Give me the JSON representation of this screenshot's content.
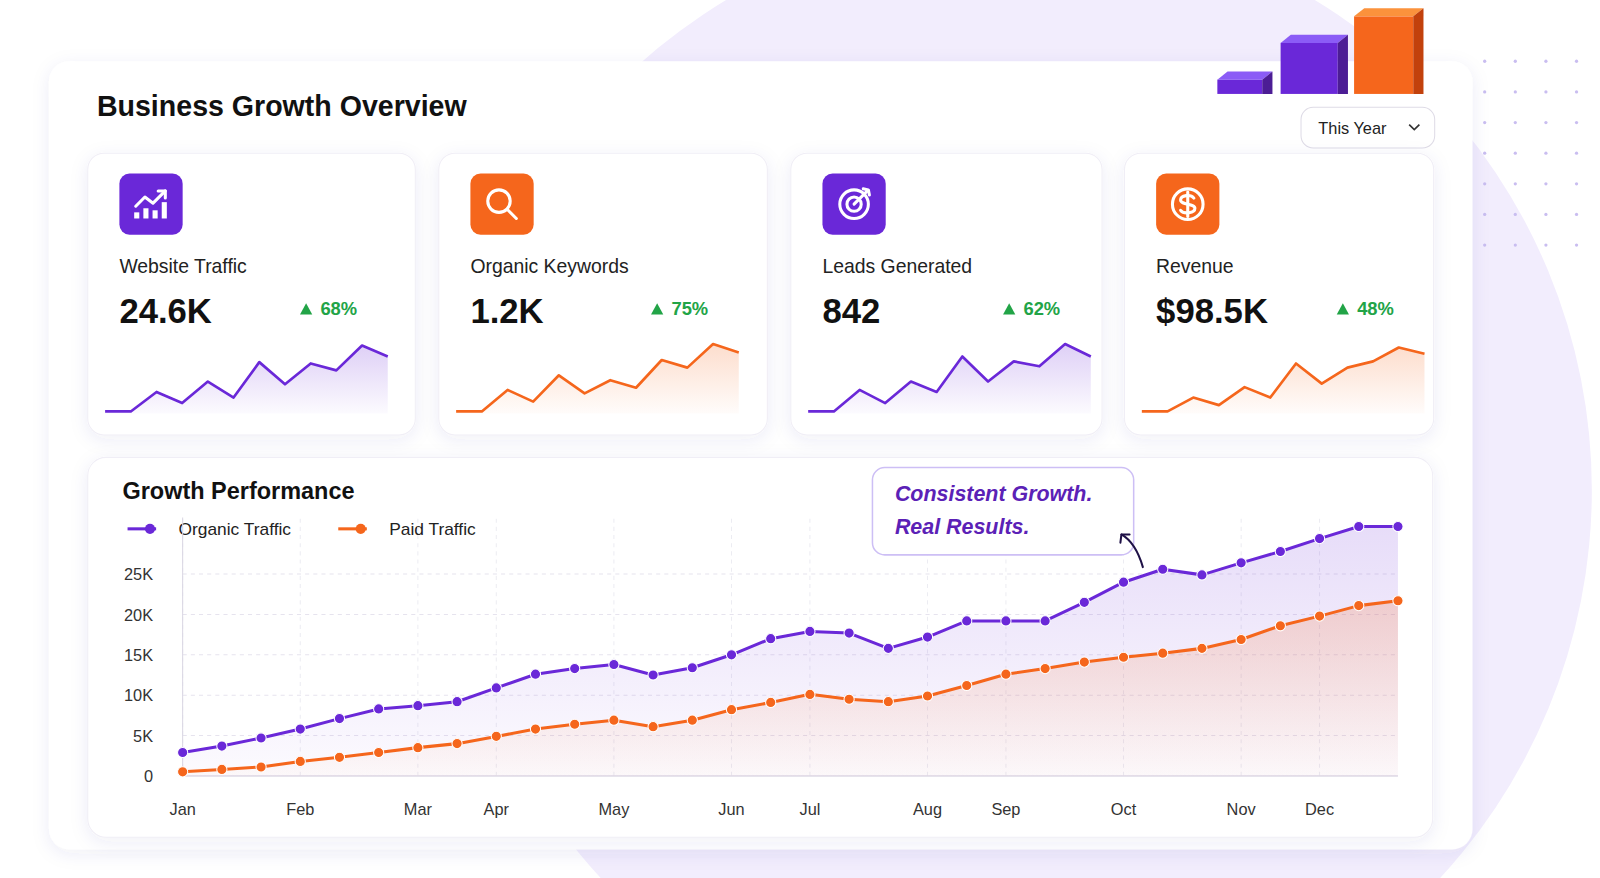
{
  "header": {
    "title": "Business Growth Overview",
    "period": "This Year"
  },
  "cards": [
    {
      "label": "Website Traffic",
      "value": "24.6K",
      "change": "68%"
    },
    {
      "label": "Organic Keywords",
      "value": "1.2K",
      "change": "75%"
    },
    {
      "label": "Leads Generated",
      "value": "842",
      "change": "62%"
    },
    {
      "label": "Revenue",
      "value": "$98.5K",
      "change": "48%"
    }
  ],
  "chart_data": [
    {
      "type": "line",
      "title": "Growth Performance",
      "categories": [
        "Jan",
        null,
        null,
        "Feb",
        null,
        null,
        "Mar",
        null,
        "Apr",
        null,
        null,
        "May",
        null,
        null,
        "Jun",
        null,
        "Jul",
        null,
        null,
        "Aug",
        null,
        "Sep",
        null,
        null,
        "Oct",
        null,
        null,
        "Nov",
        null,
        "Dec",
        null,
        null
      ],
      "series": [
        {
          "name": "Organic Traffic",
          "color": "#6a28d8",
          "marker": "circle",
          "values": [
            2900,
            3700,
            4700,
            5800,
            7100,
            8300,
            8700,
            9200,
            10900,
            12600,
            13300,
            13800,
            12500,
            13400,
            15000,
            17000,
            17900,
            17700,
            15800,
            17200,
            19200,
            19200,
            19200,
            21500,
            24000,
            25600,
            24900,
            26400,
            27800,
            29400,
            30900,
            30900
          ]
        },
        {
          "name": "Paid Traffic",
          "color": "#f5661c",
          "marker": "circle",
          "values": [
            500,
            800,
            1100,
            1800,
            2300,
            2900,
            3500,
            4000,
            4900,
            5800,
            6400,
            6900,
            6100,
            6900,
            8200,
            9100,
            10100,
            9500,
            9200,
            9900,
            11200,
            12600,
            13300,
            14100,
            14700,
            15200,
            15800,
            16900,
            18600,
            19800,
            21100,
            21700
          ]
        }
      ],
      "ylim": [
        0,
        32000
      ],
      "yticks": [
        0,
        {
          "value": 5000,
          "label": "5K"
        },
        {
          "value": 10000,
          "label": "10K"
        },
        {
          "value": 15000,
          "label": "15K"
        },
        {
          "value": 20000,
          "label": "20K"
        },
        {
          "value": 25000,
          "label": "25K"
        }
      ],
      "grid": true,
      "legend": "top-left",
      "annotation": "Consistent Growth. Real Results."
    },
    {
      "type": "line",
      "color": "#6a28d8",
      "tick_labels": false,
      "grid": false,
      "ylim": [
        0,
        100
      ],
      "values": [
        3,
        3,
        31,
        15,
        46,
        23,
        74,
        42,
        72,
        62,
        98,
        82
      ]
    },
    {
      "type": "line",
      "color": "#f5661c",
      "tick_labels": false,
      "grid": false,
      "ylim": [
        0,
        100
      ],
      "values": [
        3,
        3,
        34,
        17,
        55,
        29,
        48,
        37,
        77,
        66,
        100,
        88
      ]
    },
    {
      "type": "line",
      "color": "#6a28d8",
      "tick_labels": false,
      "grid": false,
      "ylim": [
        0,
        100
      ],
      "values": [
        3,
        3,
        34,
        15,
        46,
        31,
        82,
        46,
        75,
        68,
        100,
        82
      ]
    },
    {
      "type": "line",
      "color": "#f5661c",
      "tick_labels": false,
      "grid": false,
      "ylim": [
        0,
        100
      ],
      "values": [
        3,
        3,
        23,
        12,
        38,
        23,
        72,
        43,
        66,
        75,
        95,
        86
      ]
    }
  ]
}
